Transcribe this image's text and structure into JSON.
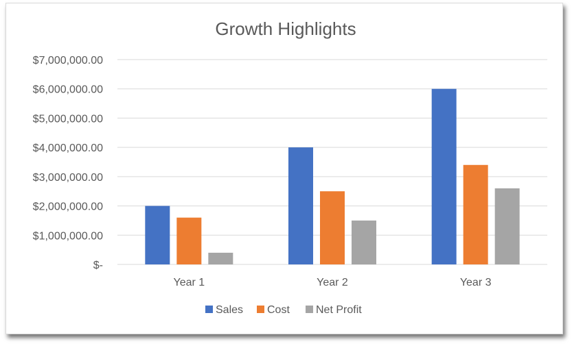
{
  "chart_data": {
    "type": "bar",
    "title": "Growth Highlights",
    "categories": [
      "Year 1",
      "Year 2",
      "Year 3"
    ],
    "series": [
      {
        "name": "Sales",
        "color": "#4472C4",
        "values": [
          2000000,
          4000000,
          6000000
        ]
      },
      {
        "name": "Cost",
        "color": "#ED7D31",
        "values": [
          1600000,
          2500000,
          3400000
        ]
      },
      {
        "name": "Net Profit",
        "color": "#A5A5A5",
        "values": [
          400000,
          1500000,
          2600000
        ]
      }
    ],
    "ylim": [
      0,
      7000000
    ],
    "yticks": [
      0,
      1000000,
      2000000,
      3000000,
      4000000,
      5000000,
      6000000,
      7000000
    ],
    "ytick_labels": [
      "$-",
      "$1,000,000.00",
      "$2,000,000.00",
      "$3,000,000.00",
      "$4,000,000.00",
      "$5,000,000.00",
      "$6,000,000.00",
      "$7,000,000.00"
    ],
    "grid": true,
    "legend_position": "bottom",
    "gridline_color": "#D9D9D9",
    "text_color": "#595959"
  }
}
